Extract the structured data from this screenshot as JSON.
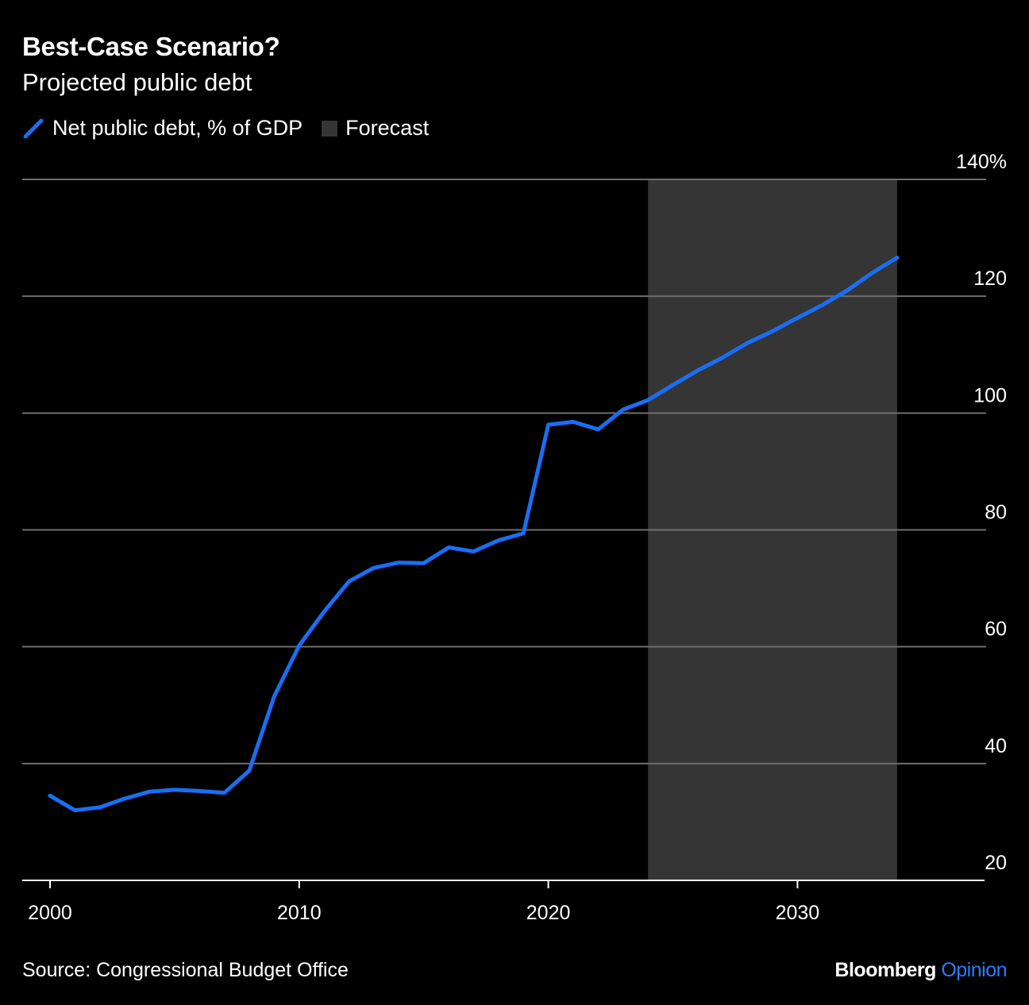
{
  "header": {
    "title": "Best-Case Scenario?",
    "subtitle": "Projected public debt"
  },
  "legend": {
    "series_label": "Net public debt, % of GDP",
    "forecast_label": "Forecast"
  },
  "footer": {
    "source": "Source: Congressional Budget Office",
    "brand_main": "Bloomberg",
    "brand_sub": "Opinion"
  },
  "colors": {
    "background": "#000000",
    "line": "#1a6ef5",
    "forecast_band": "#353535",
    "gridline": "#6e6e6e",
    "brand_accent": "#2b7cff"
  },
  "chart_data": {
    "type": "line",
    "title": "Best-Case Scenario?",
    "subtitle": "Projected public debt",
    "xlabel": "",
    "ylabel": "",
    "xlim": [
      1999,
      2036.5
    ],
    "ylim": [
      20,
      140
    ],
    "x_ticks": [
      {
        "value": 2000,
        "label": "2000"
      },
      {
        "value": 2010,
        "label": "2010"
      },
      {
        "value": 2020,
        "label": "2020"
      },
      {
        "value": 2030,
        "label": "2030"
      }
    ],
    "y_ticks": [
      {
        "value": 20,
        "label": "20"
      },
      {
        "value": 40,
        "label": "40"
      },
      {
        "value": 60,
        "label": "60"
      },
      {
        "value": 80,
        "label": "80"
      },
      {
        "value": 100,
        "label": "100"
      },
      {
        "value": 120,
        "label": "120"
      },
      {
        "value": 140,
        "label": "140%"
      }
    ],
    "grid": true,
    "y_axis_position": "right",
    "legend_position": "top-left",
    "forecast_range": [
      2024,
      2034
    ],
    "series": [
      {
        "name": "Net public debt, % of GDP",
        "x": [
          2000,
          2001,
          2002,
          2003,
          2004,
          2005,
          2006,
          2007,
          2008,
          2009,
          2010,
          2011,
          2012,
          2013,
          2014,
          2015,
          2016,
          2017,
          2018,
          2019,
          2020,
          2021,
          2022,
          2023,
          2024,
          2025,
          2026,
          2027,
          2028,
          2029,
          2030,
          2031,
          2032,
          2033,
          2034
        ],
        "values": [
          34.5,
          32.0,
          32.5,
          34.0,
          35.2,
          35.5,
          35.3,
          35.0,
          38.8,
          51.5,
          60.2,
          66.0,
          71.2,
          73.5,
          74.4,
          74.3,
          77.0,
          76.3,
          78.2,
          79.4,
          98.0,
          98.5,
          97.2,
          100.6,
          102.2,
          104.8,
          107.3,
          109.5,
          112.0,
          114.0,
          116.3,
          118.5,
          121.0,
          124.0,
          126.6
        ]
      }
    ]
  }
}
